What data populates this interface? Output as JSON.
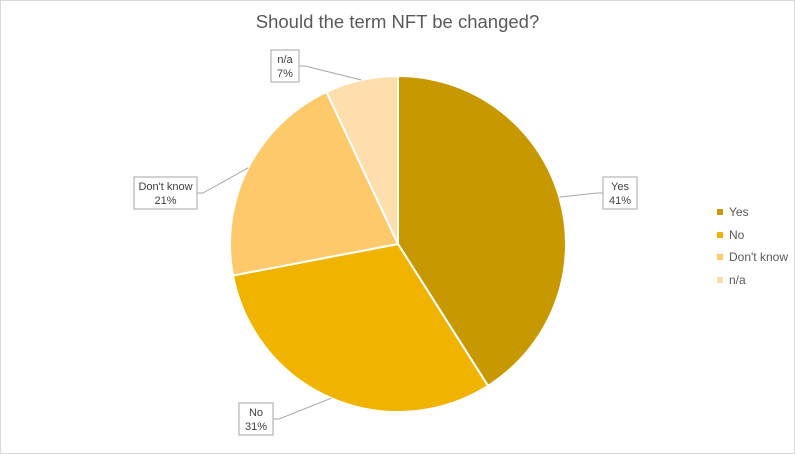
{
  "chart_data": {
    "type": "pie",
    "title": "Should the term NFT be changed?",
    "slices": [
      {
        "label": "Yes",
        "value": 41,
        "value_label": "41%",
        "color": "#c89800"
      },
      {
        "label": "No",
        "value": 31,
        "value_label": "31%",
        "color": "#f0b400"
      },
      {
        "label": "Don't know",
        "value": 21,
        "value_label": "21%",
        "color": "#fdc96a"
      },
      {
        "label": "n/a",
        "value": 7,
        "value_label": "7%",
        "color": "#fddeac"
      }
    ],
    "legend": {
      "position": "right"
    }
  }
}
